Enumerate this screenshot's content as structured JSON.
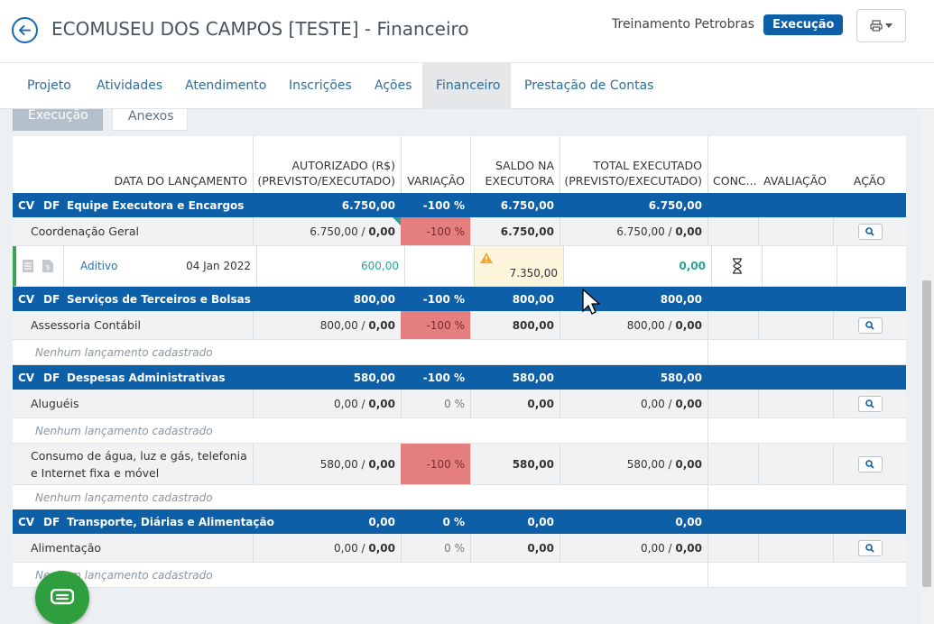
{
  "header": {
    "title": "ECOMUSEU DOS CAMPOS [TESTE] - Financeiro",
    "org": "Treinamento Petrobras",
    "status": "Execução",
    "back_icon": "arrow-left-icon",
    "print_icon": "printer-icon"
  },
  "nav": {
    "tabs": [
      "Projeto",
      "Atividades",
      "Atendimento",
      "Inscrições",
      "Ações",
      "Financeiro",
      "Prestação de Contas"
    ],
    "active": "Financeiro"
  },
  "subtabs": [
    "Execução",
    "Anexos"
  ],
  "table": {
    "headers": {
      "date": "DATA DO LANÇAMENTO",
      "authorized": "AUTORIZADO (R$) (PREVISTO/EXECUTADO)",
      "variation": "VARIAÇÃO",
      "balance": "SALDO NA EXECUTORA",
      "total": "TOTAL EXECUTADO (PREVISTO/EXECUTADO)",
      "conc": "CONC...",
      "evaluation": "AVALIAÇÃO",
      "action": "AÇÃO"
    },
    "empty_message": "Nenhum lançamento cadastrado",
    "groups": [
      {
        "code1": "CV",
        "code2": "DF",
        "name": "Equipe Executora e Encargos",
        "authorized": "6.750,00",
        "variation": "-100 %",
        "balance": "6.750,00",
        "total": "6.750,00",
        "items": [
          {
            "name": "Coordenação Geral",
            "auth_prev": "6.750,00",
            "auth_exec": "0,00",
            "variation": "-100 %",
            "balance": "6.750,00",
            "total_prev": "6.750,00",
            "total_exec": "0,00"
          }
        ],
        "entry": {
          "label": "Aditivo",
          "date": "04 Jan 2022",
          "value": "600,00",
          "balance": "7.350,00",
          "total": "0,00"
        }
      },
      {
        "code1": "CV",
        "code2": "DF",
        "name": "Serviços de Terceiros e Bolsas",
        "authorized": "800,00",
        "variation": "-100 %",
        "balance": "800,00",
        "total": "800,00",
        "items": [
          {
            "name": "Assessoria Contábil",
            "auth_prev": "800,00",
            "auth_exec": "0,00",
            "variation": "-100 %",
            "balance": "800,00",
            "total_prev": "800,00",
            "total_exec": "0,00"
          }
        ]
      },
      {
        "code1": "CV",
        "code2": "DF",
        "name": "Despesas Administrativas",
        "authorized": "580,00",
        "variation": "-100 %",
        "balance": "580,00",
        "total": "580,00",
        "items": [
          {
            "name": "Aluguéis",
            "auth_prev": "0,00",
            "auth_exec": "0,00",
            "variation": "0 %",
            "balance": "0,00",
            "total_prev": "0,00",
            "total_exec": "0,00"
          },
          {
            "name": "Consumo de água, luz e gás, telefonia e Internet fixa e móvel",
            "auth_prev": "580,00",
            "auth_exec": "0,00",
            "variation": "-100 %",
            "balance": "580,00",
            "total_prev": "580,00",
            "total_exec": "0,00"
          }
        ]
      },
      {
        "code1": "CV",
        "code2": "DF",
        "name": "Transporte, Diárias e Alimentação",
        "authorized": "0,00",
        "variation": "0 %",
        "balance": "0,00",
        "total": "0,00",
        "items": [
          {
            "name": "Alimentação",
            "auth_prev": "0,00",
            "auth_exec": "0,00",
            "variation": "0 %",
            "balance": "0,00",
            "total_prev": "0,00",
            "total_exec": "0,00"
          }
        ]
      }
    ]
  },
  "colors": {
    "primary": "#0d5fa8",
    "negative": "#e57f7f",
    "teal": "#2aa39a",
    "chat": "#2e9e3e"
  }
}
